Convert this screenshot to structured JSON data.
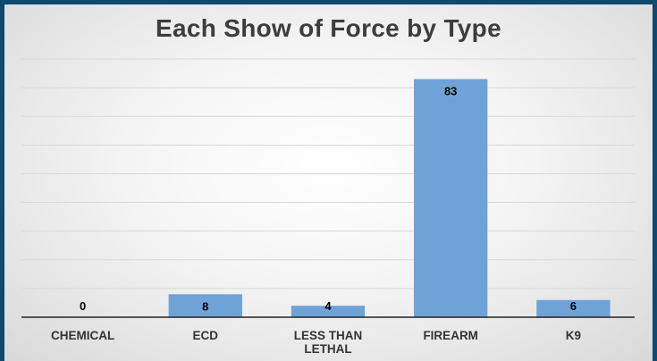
{
  "chart_data": {
    "type": "bar",
    "title": "Each Show of Force by Type",
    "categories": [
      "CHEMICAL",
      "ECD",
      "LESS THAN LETHAL",
      "FIREARM",
      "K9"
    ],
    "tick_lines": [
      [
        "CHEMICAL"
      ],
      [
        "ECD"
      ],
      [
        "LESS THAN",
        "LETHAL"
      ],
      [
        "FIREARM"
      ],
      [
        "K9"
      ]
    ],
    "values": [
      0,
      8,
      4,
      83,
      6
    ],
    "ylim": [
      0,
      90
    ],
    "grid": true,
    "colors": {
      "bar": "#6fa3d8",
      "grid": "#d9d9d9",
      "axis": "#222222",
      "frame": "#0d4a6e"
    }
  }
}
